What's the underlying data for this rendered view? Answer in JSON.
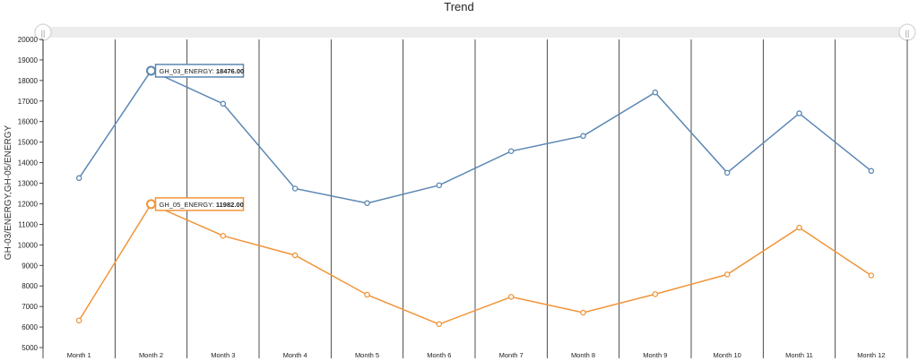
{
  "chart_data": {
    "type": "line",
    "title": "Trend",
    "ylabel": "GH-03/ENERGY,GH-05/ENERGY",
    "xlabel": "",
    "categories": [
      "Month 1",
      "Month 2",
      "Month 3",
      "Month 4",
      "Month 5",
      "Month 6",
      "Month 7",
      "Month 8",
      "Month 9",
      "Month 10",
      "Month 11",
      "Month 12"
    ],
    "ylim": [
      5000,
      20000
    ],
    "yticks": [
      "20000",
      "19000",
      "18000",
      "17000",
      "16000",
      "15000",
      "14000",
      "13000",
      "12000",
      "11000",
      "10000",
      "9000",
      "8000",
      "7000",
      "6000",
      "5000"
    ],
    "series": [
      {
        "name": "GH_03_ENERGY",
        "color": "#5b87b3",
        "values": [
          13250,
          18476,
          16870,
          12740,
          12030,
          12900,
          14560,
          15300,
          17420,
          13510,
          16400,
          13600
        ]
      },
      {
        "name": "GH_05_ENERGY",
        "color": "#f0953a",
        "values": [
          6320,
          11982,
          10440,
          9490,
          7570,
          6140,
          7470,
          6700,
          7600,
          8560,
          10840,
          8510
        ]
      }
    ],
    "tooltips": [
      {
        "series": 0,
        "index": 1,
        "label": "GH_03_ENERGY:",
        "value": "18476.00"
      },
      {
        "series": 1,
        "index": 1,
        "label": "GH_05_ENERGY:",
        "value": "11982.00"
      }
    ],
    "grid": "vertical-category-separators",
    "legend": "none"
  },
  "slider": {
    "left_grip": "||",
    "right_grip": "||"
  }
}
